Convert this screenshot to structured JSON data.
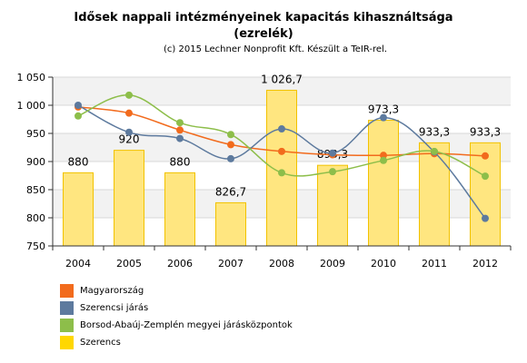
{
  "header": {
    "title_line1": "Idősek nappali intézményeinek kapacitás kihasználtsága",
    "title_line2": "(ezrelék)",
    "credit": "(c) 2015 Lechner Nonprofit Kft. Készült a TeIR-rel."
  },
  "chart_data": {
    "type": "bar",
    "title": "Idősek nappali intézményeinek kapacitás kihasználtsága (ezrelék)",
    "xlabel": "",
    "ylabel": "",
    "ylim": [
      750,
      1050
    ],
    "yticks": [
      "1 050",
      "1 000",
      "950",
      "900",
      "850",
      "800",
      "750"
    ],
    "categories": [
      "2004",
      "2005",
      "2006",
      "2007",
      "2008",
      "2009",
      "2010",
      "2011",
      "2012"
    ],
    "grid": true,
    "legend_position": "bottom-left",
    "bar_series": {
      "name": "Szerencs",
      "color": "#FFD700",
      "values": [
        880,
        920,
        880,
        826.7,
        1026.7,
        893.3,
        973.3,
        933.3,
        933.3
      ],
      "labels": [
        "880",
        "920",
        "880",
        "826,7",
        "1 026,7",
        "893,3",
        "973,3",
        "933,3",
        "933,3"
      ]
    },
    "line_series": [
      {
        "name": "Magyarország",
        "color": "#F26B1D",
        "values": [
          997,
          986,
          956,
          930,
          918,
          912,
          911,
          914,
          910
        ]
      },
      {
        "name": "Szerencsi járás",
        "color": "#5D7A9E",
        "values": [
          1000,
          952,
          941,
          905,
          958,
          915,
          978,
          917,
          799
        ]
      },
      {
        "name": "Borsod-Abaúj-Zemplén megyei járásközpontok",
        "color": "#8DBE4A",
        "values": [
          981,
          1018,
          969,
          948,
          880,
          882,
          902,
          918,
          874
        ]
      }
    ]
  },
  "legend": [
    {
      "label": "Magyarország",
      "color": "#F26B1D"
    },
    {
      "label": "Szerencsi járás",
      "color": "#5D7A9E"
    },
    {
      "label": "Borsod-Abaúj-Zemplén megyei járásközpontok",
      "color": "#8DBE4A"
    },
    {
      "label": "Szerencs",
      "color": "#FFD700"
    }
  ]
}
